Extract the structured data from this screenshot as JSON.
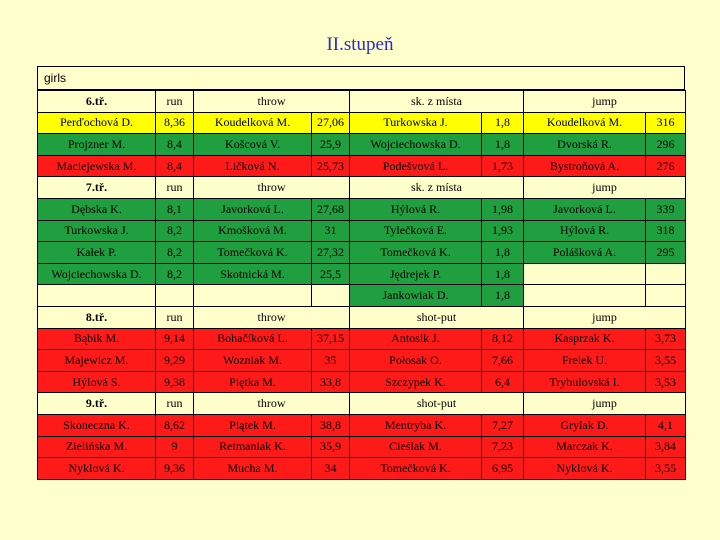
{
  "title": "II.stupeň",
  "group_label": "girls",
  "colors": {
    "background": "#ffffcc",
    "title": "#2b2bd0",
    "yellow": "#ffff00",
    "green": "#1f9f3f",
    "red": "#ff1a1a"
  },
  "sections": [
    {
      "grade": "6.tř.",
      "headers": {
        "run": "run",
        "throw": "throw",
        "third": "sk. z místa",
        "jump": "jump"
      },
      "rows": [
        {
          "color": "y",
          "cells": [
            "Perďochová D.",
            "8,36",
            "Koudelková M.",
            "27,06",
            "Turkowska J.",
            "1,8",
            "Koudelková M.",
            "316"
          ]
        },
        {
          "color": "g",
          "cells": [
            "Projzner M.",
            "8,4",
            "Košcová V.",
            "25,9",
            "Wojciechowska D.",
            "1,8",
            "Dvorská R.",
            "296"
          ]
        },
        {
          "color": "r",
          "cells": [
            "Maciejewska M.",
            "8,4",
            "Ličková N.",
            "25,73",
            "Podešvová L.",
            "1,73",
            "Bystroňová A.",
            "276"
          ]
        }
      ]
    },
    {
      "grade": "7.tř.",
      "headers": {
        "run": "run",
        "throw": "throw",
        "third": "sk. z místa",
        "jump": "jump"
      },
      "rows": [
        {
          "color": "g",
          "cells": [
            "Dębska K.",
            "8,1",
            "Javorková L.",
            "27,68",
            "Hýlová R.",
            "1,98",
            "Javorková L.",
            "339"
          ]
        },
        {
          "color": "g",
          "cells": [
            "Turkowska J.",
            "8,2",
            "Kmošková M.",
            "31",
            "Tylečková E.",
            "1,93",
            "Hýlová R.",
            "318"
          ]
        },
        {
          "color": "g",
          "cells": [
            "Kałek P.",
            "8,2",
            "Tomečková K.",
            "27,32",
            "Tomečková K.",
            "1,8",
            "Polášková A.",
            "295"
          ]
        },
        {
          "color": "g",
          "cells": [
            "Wojciechowska D.",
            "8,2",
            "Skotnická M.",
            "25,5",
            "Jędrejek P.",
            "1,8",
            "",
            ""
          ]
        },
        {
          "color": "g",
          "partial": true,
          "cells": [
            "",
            "",
            "",
            "",
            "Jankowiak D.",
            "1,8",
            "",
            ""
          ]
        }
      ]
    },
    {
      "grade": "8.tř.",
      "headers": {
        "run": "run",
        "throw": "throw",
        "third": "shot-put",
        "jump": "jump"
      },
      "rows": [
        {
          "color": "r",
          "cells": [
            "Bąbik M.",
            "9,14",
            "Bohačíková L.",
            "37,15",
            "Antosik J.",
            "8,12",
            "Kasprzak K.",
            "3,73"
          ]
        },
        {
          "color": "r",
          "cells": [
            "Majewicz M.",
            "9,29",
            "Wozniak M.",
            "35",
            "Połosak O.",
            "7,66",
            "Frelek U.",
            "3,55"
          ]
        },
        {
          "color": "r",
          "cells": [
            "Hýlová S.",
            "9,38",
            "Piętka M.",
            "33,8",
            "Szczypek K.",
            "6,4",
            "Trybulovská I.",
            "3,53"
          ]
        }
      ]
    },
    {
      "grade": "9.tř.",
      "headers": {
        "run": "run",
        "throw": "throw",
        "third": "shot-put",
        "jump": "jump"
      },
      "rows": [
        {
          "color": "r",
          "cells": [
            "Skoneczna K.",
            "8,62",
            "Piątek M.",
            "38,8",
            "Mentryba K.",
            "7,27",
            "Grylak D.",
            "4,1"
          ]
        },
        {
          "color": "r",
          "cells": [
            "Zielińska M.",
            "9",
            "Retmaniak K.",
            "35,9",
            "Cieślak M.",
            "7,23",
            "Marczak K.",
            "3,84"
          ]
        },
        {
          "color": "r",
          "cells": [
            "Nyklová K.",
            "9,36",
            "Mucha M.",
            "34",
            "Tomečková K.",
            "6,95",
            "Nyklová K.",
            "3,55"
          ]
        }
      ]
    }
  ]
}
